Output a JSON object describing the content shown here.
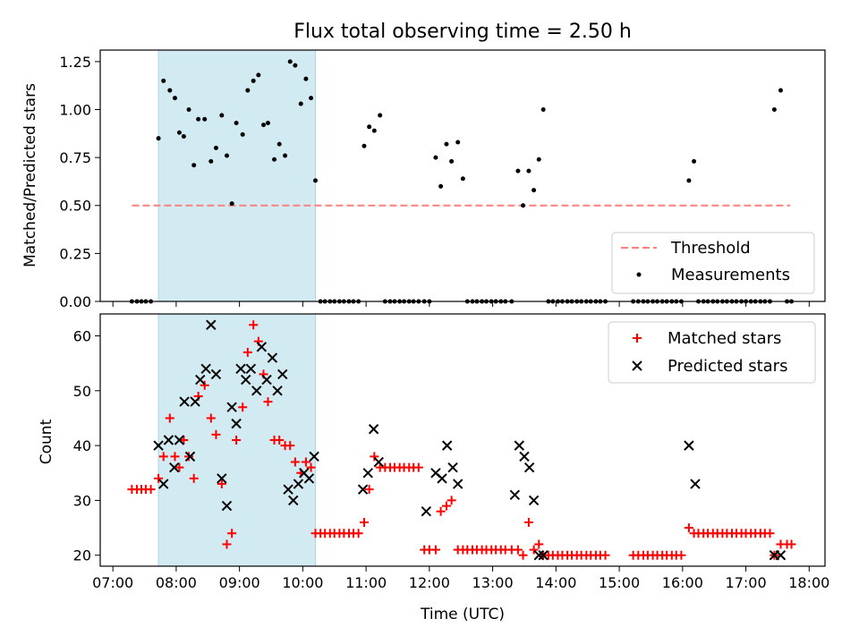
{
  "chart_data": [
    {
      "type": "scatter",
      "title": "Flux total observing time = 2.50 h",
      "ylabel": "Matched/Predicted stars",
      "ylim": [
        0,
        1.31
      ],
      "xlim": [
        6.8,
        18.25
      ],
      "yticks": [
        0,
        0.25,
        0.5,
        0.75,
        1.0,
        1.25
      ],
      "ytick_labels": [
        "0.00",
        "0.25",
        "0.50",
        "0.75",
        "1.00",
        "1.25"
      ],
      "shaded_span": {
        "x0": 7.72,
        "x1": 10.2,
        "color": "#add8e6"
      },
      "threshold": {
        "name": "Threshold",
        "value": 0.5,
        "x0": 7.3,
        "x1": 17.7,
        "color": "#ff7f7f"
      },
      "legend": {
        "location": "lower-right",
        "entries": [
          "Threshold",
          "Measurements"
        ]
      },
      "series": [
        {
          "name": "Measurements",
          "color": "#000000",
          "x": [
            7.3,
            7.38,
            7.45,
            7.52,
            7.6,
            7.72,
            7.8,
            7.9,
            7.98,
            8.05,
            8.12,
            8.2,
            8.28,
            8.35,
            8.45,
            8.55,
            8.63,
            8.72,
            8.8,
            8.88,
            8.95,
            9.05,
            9.13,
            9.22,
            9.3,
            9.38,
            9.45,
            9.55,
            9.63,
            9.72,
            9.8,
            9.88,
            9.97,
            10.05,
            10.13,
            10.2,
            10.28,
            10.35,
            10.43,
            10.5,
            10.58,
            10.65,
            10.73,
            10.8,
            10.88,
            10.97,
            11.05,
            11.13,
            11.22,
            11.3,
            11.38,
            11.45,
            11.53,
            11.6,
            11.68,
            11.75,
            11.83,
            11.92,
            12.0,
            12.1,
            12.18,
            12.27,
            12.35,
            12.45,
            12.53,
            12.6,
            12.68,
            12.75,
            12.83,
            12.9,
            12.98,
            13.05,
            13.13,
            13.2,
            13.3,
            13.4,
            13.48,
            13.57,
            13.65,
            13.73,
            13.8,
            13.88,
            13.95,
            14.03,
            14.1,
            14.18,
            14.25,
            14.33,
            14.4,
            14.48,
            14.55,
            14.63,
            14.7,
            14.78,
            15.22,
            15.3,
            15.38,
            15.45,
            15.53,
            15.6,
            15.68,
            15.75,
            15.83,
            15.9,
            15.98,
            16.1,
            16.18,
            16.25,
            16.33,
            16.4,
            16.48,
            16.55,
            16.63,
            16.7,
            16.78,
            16.85,
            16.93,
            17.0,
            17.08,
            17.15,
            17.23,
            17.3,
            17.38,
            17.45,
            17.55,
            17.65,
            17.72
          ],
          "y": [
            0,
            0,
            0,
            0,
            0,
            0.85,
            1.15,
            1.1,
            1.06,
            0.88,
            0.86,
            1.0,
            0.71,
            0.95,
            0.95,
            0.73,
            0.8,
            0.97,
            0.76,
            0.51,
            0.93,
            0.87,
            1.1,
            1.15,
            1.18,
            0.92,
            0.93,
            0.74,
            0.82,
            0.76,
            1.25,
            1.23,
            1.03,
            1.16,
            1.06,
            0.63,
            0,
            0,
            0,
            0,
            0,
            0,
            0,
            0,
            0,
            0.81,
            0.91,
            0.89,
            0.97,
            0,
            0,
            0,
            0,
            0,
            0,
            0,
            0,
            0,
            0,
            0.75,
            0.6,
            0.82,
            0.73,
            0.83,
            0.64,
            0,
            0,
            0,
            0,
            0,
            0,
            0,
            0,
            0,
            0,
            0.68,
            0.5,
            0.68,
            0.58,
            0.74,
            1.0,
            0,
            0,
            0,
            0,
            0,
            0,
            0,
            0,
            0,
            0,
            0,
            0,
            0,
            0,
            0,
            0,
            0,
            0,
            0,
            0,
            0,
            0,
            0,
            0,
            0.63,
            0.73,
            0,
            0,
            0,
            0,
            0,
            0,
            0,
            0,
            0,
            0,
            0,
            0,
            0,
            0,
            0,
            0,
            1.0,
            1.1,
            0,
            0
          ]
        }
      ]
    },
    {
      "type": "scatter",
      "xlabel": "Time (UTC)",
      "ylabel": "Count",
      "ylim": [
        18,
        64
      ],
      "xlim": [
        6.8,
        18.25
      ],
      "yticks": [
        20,
        30,
        40,
        50,
        60
      ],
      "ytick_labels": [
        "20",
        "30",
        "40",
        "50",
        "60"
      ],
      "xticks": [
        7,
        8,
        9,
        10,
        11,
        12,
        13,
        14,
        15,
        16,
        17,
        18
      ],
      "xtick_labels": [
        "07:00",
        "08:00",
        "09:00",
        "10:00",
        "11:00",
        "12:00",
        "13:00",
        "14:00",
        "15:00",
        "16:00",
        "17:00",
        "18:00"
      ],
      "shaded_span": {
        "x0": 7.72,
        "x1": 10.2,
        "color": "#add8e6"
      },
      "legend": {
        "location": "upper-right",
        "entries": [
          "Matched stars",
          "Predicted stars"
        ]
      },
      "series": [
        {
          "name": "Matched stars",
          "color": "#ff0000",
          "x": [
            7.3,
            7.38,
            7.45,
            7.52,
            7.6,
            7.72,
            7.8,
            7.9,
            7.98,
            8.05,
            8.12,
            8.2,
            8.28,
            8.35,
            8.45,
            8.55,
            8.63,
            8.72,
            8.8,
            8.88,
            8.95,
            9.05,
            9.13,
            9.22,
            9.3,
            9.38,
            9.45,
            9.55,
            9.63,
            9.72,
            9.8,
            9.88,
            9.97,
            10.05,
            10.13,
            10.2,
            10.28,
            10.35,
            10.43,
            10.5,
            10.58,
            10.65,
            10.73,
            10.8,
            10.88,
            10.97,
            11.05,
            11.13,
            11.22,
            11.3,
            11.38,
            11.45,
            11.53,
            11.6,
            11.68,
            11.75,
            11.83,
            11.92,
            12.0,
            12.1,
            12.18,
            12.27,
            12.35,
            12.45,
            12.53,
            12.6,
            12.68,
            12.75,
            12.83,
            12.9,
            12.98,
            13.05,
            13.13,
            13.2,
            13.3,
            13.4,
            13.48,
            13.57,
            13.65,
            13.73,
            13.8,
            13.88,
            13.95,
            14.03,
            14.1,
            14.18,
            14.25,
            14.33,
            14.4,
            14.48,
            14.55,
            14.63,
            14.7,
            14.78,
            15.22,
            15.3,
            15.38,
            15.45,
            15.53,
            15.6,
            15.68,
            15.75,
            15.83,
            15.9,
            15.98,
            16.1,
            16.18,
            16.25,
            16.33,
            16.4,
            16.48,
            16.55,
            16.63,
            16.7,
            16.78,
            16.85,
            16.93,
            17.0,
            17.08,
            17.15,
            17.23,
            17.3,
            17.38,
            17.45,
            17.55,
            17.65,
            17.72
          ],
          "y": [
            32,
            32,
            32,
            32,
            32,
            34,
            38,
            45,
            38,
            36,
            41,
            38,
            34,
            49,
            51,
            45,
            42,
            33,
            22,
            24,
            41,
            47,
            57,
            62,
            59,
            53,
            48,
            41,
            41,
            40,
            40,
            37,
            35,
            37,
            36,
            24,
            24,
            24,
            24,
            24,
            24,
            24,
            24,
            24,
            24,
            26,
            32,
            38,
            36,
            36,
            36,
            36,
            36,
            36,
            36,
            36,
            36,
            21,
            21,
            21,
            28,
            29,
            30,
            21,
            21,
            21,
            21,
            21,
            21,
            21,
            21,
            21,
            21,
            21,
            21,
            21,
            20,
            26,
            21,
            22,
            20,
            20,
            20,
            20,
            20,
            20,
            20,
            20,
            20,
            20,
            20,
            20,
            20,
            20,
            20,
            20,
            20,
            20,
            20,
            20,
            20,
            20,
            20,
            20,
            20,
            25,
            24,
            24,
            24,
            24,
            24,
            24,
            24,
            24,
            24,
            24,
            24,
            24,
            24,
            24,
            24,
            24,
            24,
            20,
            22,
            22,
            22
          ]
        },
        {
          "name": "Predicted stars",
          "color": "#000000",
          "x": [
            7.72,
            7.8,
            7.88,
            7.97,
            8.05,
            8.13,
            8.22,
            8.3,
            8.38,
            8.47,
            8.55,
            8.63,
            8.72,
            8.8,
            8.88,
            8.95,
            9.02,
            9.1,
            9.18,
            9.27,
            9.35,
            9.43,
            9.52,
            9.6,
            9.68,
            9.77,
            9.85,
            9.93,
            10.02,
            10.1,
            10.18,
            10.95,
            11.03,
            11.12,
            11.2,
            11.95,
            12.1,
            12.2,
            12.28,
            12.37,
            12.45,
            13.35,
            13.42,
            13.5,
            13.58,
            13.65,
            13.73,
            13.8,
            16.1,
            16.2,
            17.45,
            17.55
          ],
          "y": [
            40,
            33,
            41,
            36,
            41,
            48,
            38,
            48,
            52,
            54,
            62,
            53,
            34,
            29,
            47,
            44,
            54,
            52,
            54,
            50,
            58,
            52,
            56,
            50,
            53,
            32,
            30,
            33,
            35,
            34,
            38,
            32,
            35,
            43,
            37,
            28,
            35,
            34,
            40,
            36,
            33,
            31,
            40,
            38,
            36,
            30,
            20,
            20,
            40,
            33,
            20,
            20
          ]
        }
      ]
    }
  ]
}
